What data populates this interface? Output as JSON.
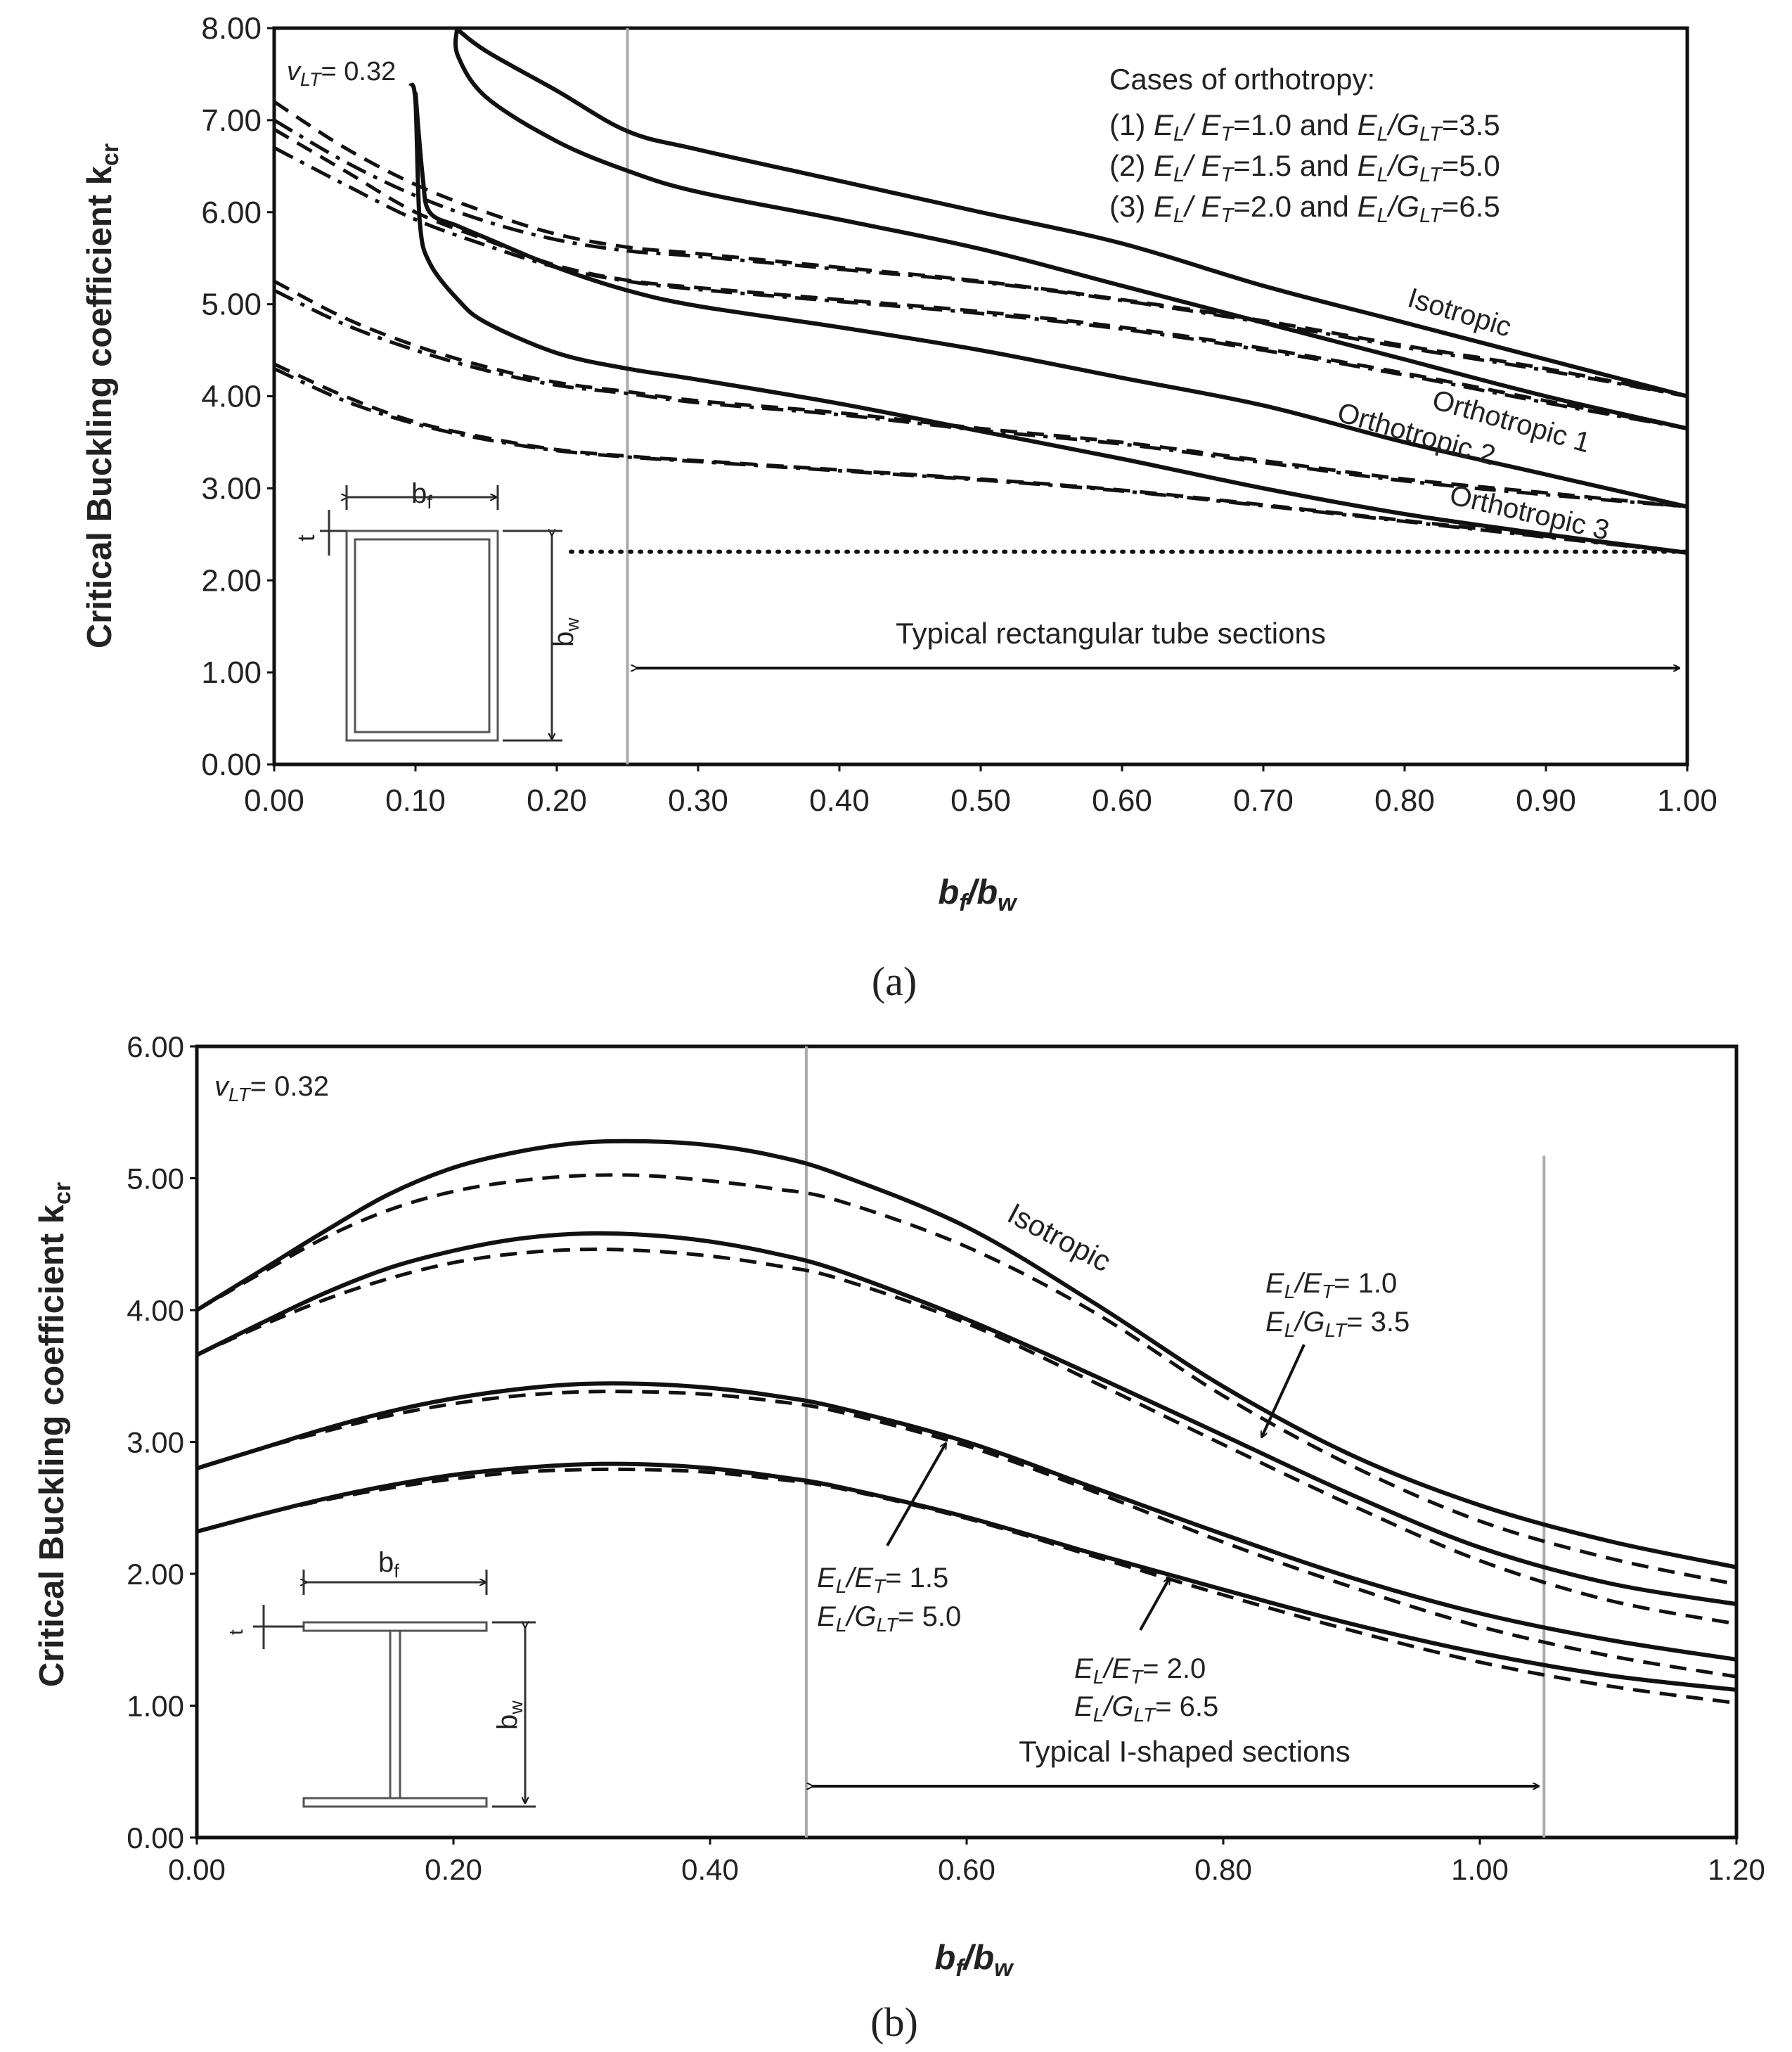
{
  "chart_data": [
    {
      "panel": "a",
      "type": "line",
      "panel_label": "(a)",
      "xlabel_base": "b",
      "xlabel_sub1": "f",
      "xlabel_slash": "/b",
      "xlabel_sub2": "w",
      "ylabel_base": "Critical Buckling coefficient k",
      "ylabel_sub": "cr",
      "xlim": [
        0,
        1
      ],
      "ylim": [
        0,
        8
      ],
      "x_ticks": [
        "0.00",
        "0.10",
        "0.20",
        "0.30",
        "0.40",
        "0.50",
        "0.60",
        "0.70",
        "0.80",
        "0.90",
        "1.00"
      ],
      "y_ticks": [
        "0.00",
        "1.00",
        "2.00",
        "3.00",
        "4.00",
        "5.00",
        "6.00",
        "7.00",
        "8.00"
      ],
      "nu_label": "v",
      "nu_sub": "LT",
      "nu_value": "= 0.32",
      "legend_title": "Cases of orthotropy:",
      "legend_lines": [
        {
          "num": "(1)",
          "a": "E",
          "as": "L",
          "mid": "/ E",
          "bs": "T",
          "val1": "=1.0 and",
          "c": "E",
          "cs": "L",
          "mid2": "/G",
          "ds": "LT",
          "val2": "=3.5"
        },
        {
          "num": "(2)",
          "a": "E",
          "as": "L",
          "mid": "/ E",
          "bs": "T",
          "val1": "=1.5 and",
          "c": "E",
          "cs": "L",
          "mid2": "/G",
          "ds": "LT",
          "val2": "=5.0"
        },
        {
          "num": "(3)",
          "a": "E",
          "as": "L",
          "mid": "/ E",
          "bs": "T",
          "val1": "=2.0 and",
          "c": "E",
          "cs": "L",
          "mid2": "/G",
          "ds": "LT",
          "val2": "=6.5"
        }
      ],
      "curve_labels": [
        "Isotropic",
        "Orthotropic 1",
        "Orthotropic 2",
        "Orthotropic 3"
      ],
      "range_label": "Typical rectangular tube sections",
      "range": [
        0.25,
        1.0
      ],
      "vertical_line_x": 0.25,
      "threshold_line": {
        "y": 2.31,
        "x_from": 0.21,
        "x_to": 1.0,
        "style": "dotted"
      },
      "series": [
        {
          "name": "Isotropic",
          "style": "solid",
          "x": [
            0.1286,
            0.15,
            0.2,
            0.25,
            0.3,
            0.4,
            0.5,
            0.6,
            0.7,
            0.8,
            0.9,
            1.0
          ],
          "y": [
            8.0,
            7.75,
            7.32,
            6.88,
            6.68,
            6.34,
            6.0,
            5.66,
            5.2,
            4.8,
            4.4,
            4.0
          ]
        },
        {
          "name": "Orthotropic 1",
          "style": "solid",
          "x": [
            0.1294,
            0.13,
            0.15,
            0.2,
            0.25,
            0.3,
            0.4,
            0.5,
            0.6,
            0.7,
            0.8,
            0.9,
            1.0
          ],
          "y": [
            8.0,
            7.7,
            7.25,
            6.77,
            6.45,
            6.22,
            5.92,
            5.6,
            5.2,
            4.8,
            4.4,
            4.0,
            3.65
          ]
        },
        {
          "name": "Orthotropic 2",
          "style": "solid",
          "x": [
            0.1,
            0.105,
            0.11,
            0.13,
            0.15,
            0.2,
            0.25,
            0.3,
            0.4,
            0.5,
            0.6,
            0.7,
            0.8,
            0.9,
            1.0
          ],
          "y": [
            7.3,
            6.4,
            6.0,
            5.85,
            5.72,
            5.4,
            5.15,
            4.98,
            4.75,
            4.5,
            4.2,
            3.9,
            3.5,
            3.15,
            2.8
          ]
        },
        {
          "name": "Orthotropic 3",
          "style": "solid",
          "x": [
            0.0965,
            0.1,
            0.103,
            0.11,
            0.13,
            0.15,
            0.2,
            0.25,
            0.3,
            0.4,
            0.5,
            0.6,
            0.7,
            0.8,
            0.9,
            1.0
          ],
          "y": [
            7.4,
            7.2,
            5.9,
            5.45,
            5.05,
            4.8,
            4.47,
            4.3,
            4.18,
            3.92,
            3.62,
            3.32,
            3.0,
            2.72,
            2.5,
            2.3
          ]
        },
        {
          "name": "Isotropic (dashed)",
          "style": "dashed",
          "x": [
            0,
            0.05,
            0.1,
            0.15,
            0.2,
            0.25,
            0.3,
            0.4,
            0.5,
            0.6,
            0.7,
            0.8,
            0.9,
            1.0
          ],
          "y": [
            7.2,
            6.7,
            6.3,
            6.0,
            5.76,
            5.62,
            5.55,
            5.4,
            5.25,
            5.05,
            4.82,
            4.55,
            4.3,
            4.0
          ]
        },
        {
          "name": "Orthotropic 1 (dashed)",
          "style": "dashed",
          "x": [
            0,
            0.05,
            0.1,
            0.15,
            0.2,
            0.25,
            0.3,
            0.4,
            0.5,
            0.6,
            0.7,
            0.8,
            0.9,
            1.0
          ],
          "y": [
            6.9,
            6.45,
            6.0,
            5.7,
            5.42,
            5.26,
            5.18,
            5.05,
            4.92,
            4.75,
            4.52,
            4.25,
            3.95,
            3.65
          ]
        },
        {
          "name": "Orthotropic 2 (dashed)",
          "style": "dashed",
          "x": [
            0,
            0.05,
            0.1,
            0.15,
            0.2,
            0.25,
            0.3,
            0.4,
            0.5,
            0.6,
            0.7,
            0.8,
            0.9,
            1.0
          ],
          "y": [
            5.25,
            4.85,
            4.55,
            4.32,
            4.15,
            4.05,
            3.95,
            3.82,
            3.65,
            3.5,
            3.3,
            3.1,
            2.95,
            2.8
          ]
        },
        {
          "name": "Orthotropic 3 (dashed)",
          "style": "dashed",
          "x": [
            0,
            0.05,
            0.1,
            0.15,
            0.2,
            0.25,
            0.3,
            0.4,
            0.5,
            0.6,
            0.7,
            0.8,
            0.9,
            1.0
          ],
          "y": [
            4.35,
            4.0,
            3.72,
            3.55,
            3.42,
            3.35,
            3.3,
            3.2,
            3.1,
            2.98,
            2.82,
            2.65,
            2.48,
            2.3
          ]
        },
        {
          "name": "Isotropic (dash-dot)",
          "style": "dashdot",
          "x": [
            0,
            0.05,
            0.1,
            0.15,
            0.2,
            0.25,
            0.3,
            0.4,
            0.5,
            0.6,
            0.7,
            0.8,
            0.9,
            1.0
          ],
          "y": [
            7.0,
            6.55,
            6.18,
            5.9,
            5.7,
            5.58,
            5.52,
            5.38,
            5.24,
            5.04,
            4.8,
            4.53,
            4.28,
            4.0
          ]
        },
        {
          "name": "Orthotropic 1 (dash-dot)",
          "style": "dashdot",
          "x": [
            0,
            0.05,
            0.1,
            0.15,
            0.2,
            0.25,
            0.3,
            0.4,
            0.5,
            0.6,
            0.7,
            0.8,
            0.9,
            1.0
          ],
          "y": [
            6.7,
            6.3,
            5.92,
            5.64,
            5.4,
            5.25,
            5.16,
            5.03,
            4.9,
            4.73,
            4.5,
            4.23,
            3.93,
            3.65
          ]
        },
        {
          "name": "Orthotropic 2 (dash-dot)",
          "style": "dashdot",
          "x": [
            0,
            0.05,
            0.1,
            0.15,
            0.2,
            0.25,
            0.3,
            0.4,
            0.5,
            0.6,
            0.7,
            0.8,
            0.9,
            1.0
          ],
          "y": [
            5.15,
            4.78,
            4.5,
            4.28,
            4.12,
            4.03,
            3.93,
            3.8,
            3.63,
            3.48,
            3.28,
            3.08,
            2.93,
            2.8
          ]
        },
        {
          "name": "Orthotropic 3 (dash-dot)",
          "style": "dashdot",
          "x": [
            0,
            0.05,
            0.1,
            0.15,
            0.2,
            0.25,
            0.3,
            0.4,
            0.5,
            0.6,
            0.7,
            0.8,
            0.9,
            1.0
          ],
          "y": [
            4.3,
            3.95,
            3.7,
            3.53,
            3.41,
            3.34,
            3.29,
            3.19,
            3.09,
            2.97,
            2.81,
            2.64,
            2.47,
            2.3
          ]
        }
      ],
      "inset": {
        "type": "rectangular-tube",
        "labels": [
          "b",
          "f",
          "b",
          "w",
          "t"
        ]
      }
    },
    {
      "panel": "b",
      "type": "line",
      "panel_label": "(b)",
      "xlabel_base": "b",
      "xlabel_sub1": "f",
      "xlabel_slash": "/b",
      "xlabel_sub2": "w",
      "ylabel_base": "Critical Buckling coefficient k",
      "ylabel_sub": "cr",
      "xlim": [
        0,
        1.2
      ],
      "ylim": [
        0,
        6
      ],
      "x_ticks": [
        "0.00",
        "0.20",
        "0.40",
        "0.60",
        "0.80",
        "1.00",
        "1.20"
      ],
      "y_ticks": [
        "0.00",
        "1.00",
        "2.00",
        "3.00",
        "4.00",
        "5.00",
        "6.00"
      ],
      "nu_label": "v",
      "nu_sub": "LT",
      "nu_value": "= 0.32",
      "curve_labels": [
        "Isotropic"
      ],
      "annotations": [
        {
          "l1a": "E",
          "l1as": "L",
          "l1b": "/E",
          "l1bs": "T",
          "l1v": "= 1.0",
          "l2a": "E",
          "l2as": "L",
          "l2b": "/G",
          "l2bs": "LT",
          "l2v": "= 3.5",
          "arrow_to": [
            0.83,
            3.0
          ]
        },
        {
          "l1a": "E",
          "l1as": "L",
          "l1b": "/E",
          "l1bs": "T",
          "l1v": "= 1.5",
          "l2a": "E",
          "l2as": "L",
          "l2b": "/G",
          "l2bs": "LT",
          "l2v": "= 5.0",
          "arrow_to": [
            0.585,
            2.97
          ]
        },
        {
          "l1a": "E",
          "l1as": "L",
          "l1b": "/E",
          "l1bs": "T",
          "l1v": "= 2.0",
          "l2a": "E",
          "l2as": "L",
          "l2b": "/G",
          "l2bs": "LT",
          "l2v": "= 6.5",
          "arrow_to": [
            0.755,
            2.0
          ]
        }
      ],
      "range_label": "Typical I-shaped sections",
      "range": [
        0.475,
        1.05
      ],
      "vertical_lines_x": [
        0.475,
        1.05
      ],
      "series": [
        {
          "name": "Isotropic",
          "style": "solid",
          "x": [
            0,
            0.05,
            0.1,
            0.15,
            0.2,
            0.25,
            0.3,
            0.35,
            0.4,
            0.45,
            0.5,
            0.6,
            0.7,
            0.8,
            0.9,
            1.0,
            1.1,
            1.2
          ],
          "y": [
            4.0,
            4.3,
            4.6,
            4.88,
            5.08,
            5.2,
            5.27,
            5.28,
            5.25,
            5.17,
            5.03,
            4.63,
            4.05,
            3.42,
            2.9,
            2.52,
            2.25,
            2.05
          ]
        },
        {
          "name": "E_L/E_T=1.0",
          "style": "solid",
          "x": [
            0,
            0.05,
            0.1,
            0.15,
            0.2,
            0.25,
            0.3,
            0.35,
            0.4,
            0.45,
            0.5,
            0.6,
            0.7,
            0.8,
            0.9,
            1.0,
            1.1,
            1.2
          ],
          "y": [
            3.66,
            3.9,
            4.13,
            4.32,
            4.45,
            4.54,
            4.58,
            4.57,
            4.52,
            4.43,
            4.3,
            3.93,
            3.5,
            3.05,
            2.6,
            2.2,
            1.93,
            1.77
          ]
        },
        {
          "name": "E_L/E_T=1.5",
          "style": "solid",
          "x": [
            0,
            0.05,
            0.1,
            0.15,
            0.2,
            0.25,
            0.3,
            0.35,
            0.4,
            0.45,
            0.5,
            0.6,
            0.7,
            0.8,
            0.9,
            1.0,
            1.1,
            1.2
          ],
          "y": [
            2.8,
            2.95,
            3.1,
            3.23,
            3.33,
            3.4,
            3.44,
            3.44,
            3.41,
            3.35,
            3.26,
            3.0,
            2.65,
            2.3,
            1.97,
            1.7,
            1.5,
            1.35
          ]
        },
        {
          "name": "E_L/E_T=2.0",
          "style": "solid",
          "x": [
            0,
            0.05,
            0.1,
            0.15,
            0.2,
            0.25,
            0.3,
            0.35,
            0.4,
            0.45,
            0.5,
            0.6,
            0.7,
            0.8,
            0.9,
            1.0,
            1.1,
            1.2
          ],
          "y": [
            2.32,
            2.45,
            2.57,
            2.67,
            2.75,
            2.8,
            2.83,
            2.83,
            2.8,
            2.74,
            2.66,
            2.43,
            2.15,
            1.88,
            1.62,
            1.4,
            1.23,
            1.12
          ]
        },
        {
          "name": "Isotropic (dashed)",
          "style": "dashed",
          "x": [
            0,
            0.05,
            0.1,
            0.15,
            0.2,
            0.25,
            0.3,
            0.35,
            0.4,
            0.45,
            0.5,
            0.6,
            0.7,
            0.8,
            0.9,
            1.0,
            1.1,
            1.2
          ],
          "y": [
            4.0,
            4.28,
            4.55,
            4.76,
            4.9,
            4.98,
            5.02,
            5.02,
            4.98,
            4.92,
            4.83,
            4.48,
            3.98,
            3.35,
            2.82,
            2.4,
            2.12,
            1.92
          ]
        },
        {
          "name": "E_L/E_T=1.0 (dashed)",
          "style": "dashed",
          "x": [
            0,
            0.05,
            0.1,
            0.15,
            0.2,
            0.25,
            0.3,
            0.35,
            0.4,
            0.45,
            0.5,
            0.6,
            0.7,
            0.8,
            0.9,
            1.0,
            1.1,
            1.2
          ],
          "y": [
            3.66,
            3.88,
            4.08,
            4.24,
            4.36,
            4.43,
            4.46,
            4.45,
            4.41,
            4.34,
            4.24,
            3.9,
            3.45,
            2.98,
            2.52,
            2.1,
            1.8,
            1.62
          ]
        },
        {
          "name": "E_L/E_T=1.5 (dashed)",
          "style": "dashed",
          "x": [
            0,
            0.05,
            0.1,
            0.15,
            0.2,
            0.25,
            0.3,
            0.35,
            0.4,
            0.45,
            0.5,
            0.6,
            0.7,
            0.8,
            0.9,
            1.0,
            1.1,
            1.2
          ],
          "y": [
            2.8,
            2.95,
            3.08,
            3.2,
            3.29,
            3.35,
            3.38,
            3.38,
            3.36,
            3.31,
            3.23,
            2.97,
            2.62,
            2.24,
            1.9,
            1.6,
            1.38,
            1.22
          ]
        },
        {
          "name": "E_L/E_T=2.0 (dashed)",
          "style": "dashed",
          "x": [
            0,
            0.05,
            0.1,
            0.15,
            0.2,
            0.25,
            0.3,
            0.35,
            0.4,
            0.45,
            0.5,
            0.6,
            0.7,
            0.8,
            0.9,
            1.0,
            1.1,
            1.2
          ],
          "y": [
            2.32,
            2.45,
            2.56,
            2.65,
            2.72,
            2.77,
            2.79,
            2.79,
            2.77,
            2.72,
            2.65,
            2.42,
            2.13,
            1.84,
            1.57,
            1.33,
            1.15,
            1.02
          ]
        }
      ],
      "inset": {
        "type": "i-section",
        "labels": [
          "b",
          "f",
          "b",
          "w",
          "t"
        ]
      }
    }
  ]
}
